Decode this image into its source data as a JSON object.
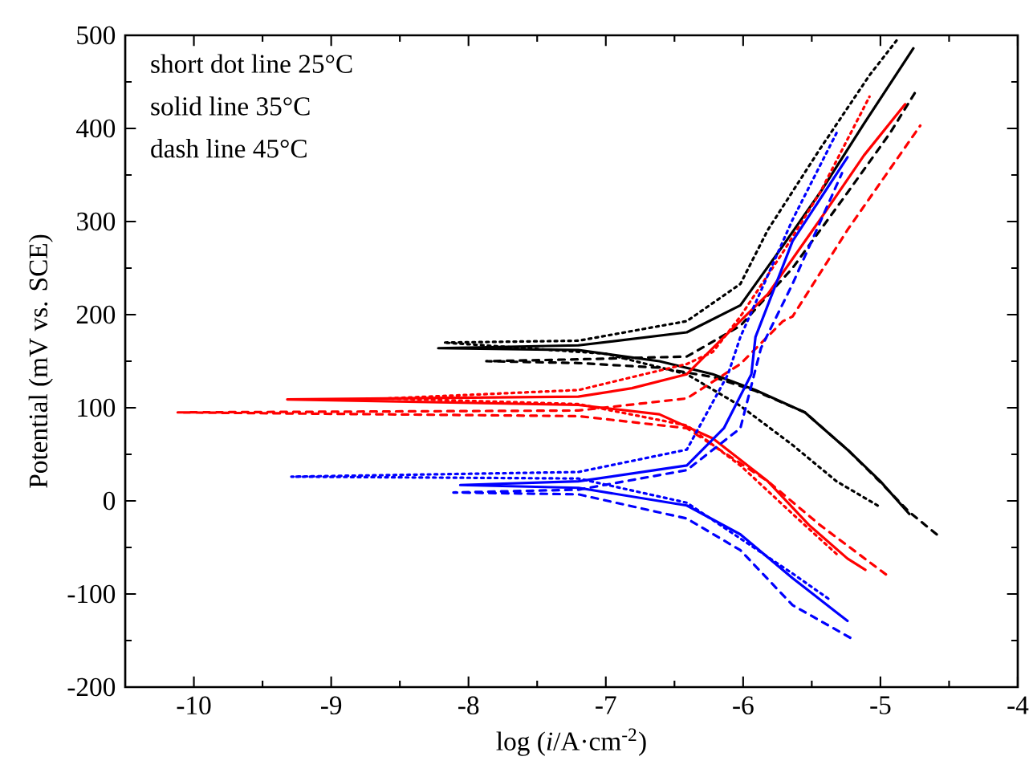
{
  "chart_data": {
    "type": "line",
    "xlabel": "log (*i*/A·cm$^{-2}$)",
    "ylabel": "Potential (mV vs. SCE)",
    "annotations": [
      "short dot line 25°C",
      "solid line 35°C",
      "dash line 45°C"
    ],
    "xlim": [
      -10.5,
      -4
    ],
    "ylim": [
      -200,
      500
    ],
    "xticks": [
      -10,
      -9,
      -8,
      -7,
      -6,
      -5,
      -4
    ],
    "yticks": [
      -200,
      -100,
      0,
      100,
      200,
      300,
      400,
      500
    ],
    "series": [
      {
        "color": "#000000",
        "line_style": "dotted",
        "x": [
          -5.02,
          -5.32,
          -5.64,
          -6.02,
          -6.41,
          -7.0,
          -8.18,
          -7.2,
          -6.41,
          -6.02,
          -5.82,
          -5.44,
          -5.08,
          -4.88
        ],
        "values": [
          -5,
          21,
          60,
          102,
          136,
          158,
          170,
          172,
          193,
          233,
          291,
          378,
          457,
          495
        ]
      },
      {
        "color": "#000000",
        "line_style": "solid",
        "x": [
          -4.79,
          -5.0,
          -5.24,
          -5.55,
          -5.91,
          -6.22,
          -6.61,
          -7.2,
          -8.22,
          -7.2,
          -6.41,
          -6.02,
          -5.71,
          -5.44,
          -5.12,
          -4.76
        ],
        "values": [
          -14,
          21,
          55,
          95,
          119,
          136,
          150,
          162,
          164,
          167,
          181,
          210,
          274,
          331,
          405,
          486
        ]
      },
      {
        "color": "#000000",
        "line_style": "dashed",
        "x": [
          -4.59,
          -4.79,
          -5.0,
          -5.24,
          -5.55,
          -5.91,
          -6.22,
          -6.61,
          -7.2,
          -7.87,
          -7.2,
          -6.41,
          -6.02,
          -5.64,
          -5.24,
          -4.93,
          -4.75
        ],
        "values": [
          -36,
          -12,
          20,
          55,
          95,
          118,
          133,
          143,
          148,
          150,
          152,
          155,
          188,
          250,
          331,
          395,
          438
        ]
      },
      {
        "color": "#ff0000",
        "line_style": "dotted",
        "x": [
          -5.32,
          -5.64,
          -6.02,
          -6.41,
          -7.2,
          -8.59,
          -7.2,
          -6.41,
          -6.22,
          -6.02,
          -5.71,
          -5.44,
          -5.08
        ],
        "values": [
          -57,
          -14,
          38,
          81,
          104,
          110,
          119,
          147,
          160,
          198,
          267,
          331,
          434
        ]
      },
      {
        "color": "#ff0000",
        "line_style": "solid",
        "x": [
          -5.11,
          -5.24,
          -5.52,
          -5.82,
          -6.22,
          -6.61,
          -7.2,
          -9.32,
          -7.2,
          -6.81,
          -6.41,
          -6.14,
          -5.82,
          -5.44,
          -5.12,
          -4.82
        ],
        "values": [
          -74,
          -62,
          -26,
          21,
          67,
          93,
          103,
          109,
          112,
          121,
          136,
          176,
          222,
          302,
          371,
          426
        ]
      },
      {
        "color": "#ff0000",
        "line_style": "dashed",
        "x": [
          -4.96,
          -5.44,
          -5.82,
          -6.41,
          -7.2,
          -10.12,
          -7.2,
          -6.41,
          -6.02,
          -5.71,
          -5.64,
          -5.24,
          -4.71
        ],
        "values": [
          -79,
          -26,
          21,
          78,
          91,
          95,
          97,
          110,
          147,
          193,
          198,
          291,
          403
        ]
      },
      {
        "color": "#0000ff",
        "line_style": "dotted",
        "x": [
          -5.38,
          -5.64,
          -6.41,
          -7.2,
          -9.29,
          -7.2,
          -6.41,
          -6.11,
          -6.02,
          -5.64,
          -5.32
        ],
        "values": [
          -105,
          -78,
          -2,
          24,
          26,
          31,
          55,
          136,
          176,
          302,
          395
        ]
      },
      {
        "color": "#0000ff",
        "line_style": "solid",
        "x": [
          -5.24,
          -5.64,
          -6.02,
          -6.41,
          -7.2,
          -8.06,
          -7.2,
          -6.41,
          -6.14,
          -5.94,
          -5.91,
          -5.64,
          -5.24
        ],
        "values": [
          -129,
          -83,
          -36,
          -5,
          14,
          17,
          21,
          38,
          78,
          136,
          176,
          279,
          369
        ]
      },
      {
        "color": "#0000ff",
        "line_style": "dashed",
        "x": [
          -5.22,
          -5.64,
          -6.02,
          -6.41,
          -7.2,
          -8.11,
          -7.2,
          -6.41,
          -6.02,
          -5.87,
          -5.64,
          -5.28
        ],
        "values": [
          -147,
          -112,
          -53,
          -19,
          7,
          9,
          12,
          33,
          78,
          164,
          233,
          352
        ]
      }
    ]
  }
}
